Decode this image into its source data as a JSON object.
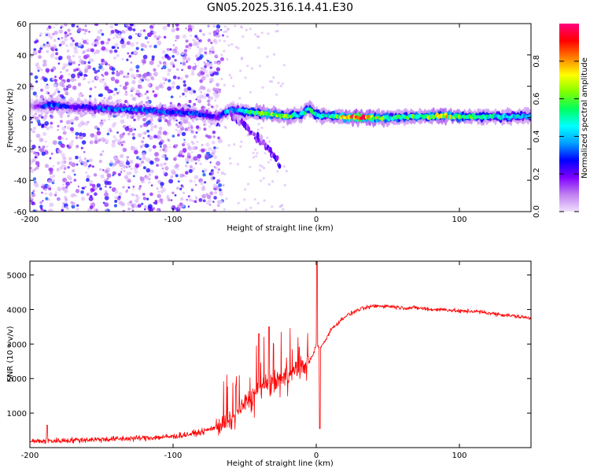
{
  "title": "GN05.2025.316.14.41.E30",
  "chart_data": [
    {
      "type": "heatmap",
      "title": "GN05.2025.316.14.41.E30",
      "xlabel": "Height of straight line (km)",
      "ylabel": "Frequency (Hz)",
      "xlim": [
        -200,
        150
      ],
      "ylim": [
        -60,
        60
      ],
      "xticks": [
        -200,
        -100,
        0,
        100
      ],
      "yticks": [
        -60,
        -40,
        -20,
        0,
        20,
        40,
        60
      ],
      "colorbar": {
        "label": "Normalized spectral amplitude",
        "range": [
          0,
          1
        ],
        "ticks": [
          0,
          0.2,
          0.4,
          0.6,
          0.8
        ],
        "tick_labels": [
          "0.0",
          "0.2",
          "0.4",
          "0.6",
          "0.8"
        ],
        "colors": [
          "#f0e0ff",
          "#c080f0",
          "#8000ff",
          "#0000ff",
          "#00a0ff",
          "#00ffff",
          "#00ff60",
          "#80ff00",
          "#ffff00",
          "#ff8000",
          "#ff0000",
          "#ff0080"
        ]
      },
      "ridge": {
        "x": [
          -200,
          -185,
          -170,
          -150,
          -130,
          -110,
          -90,
          -80,
          -70,
          -60,
          -50,
          -40,
          -30,
          -20,
          -10,
          -5,
          0,
          10,
          30,
          50,
          70,
          90,
          110,
          130,
          150
        ],
        "freq": [
          7,
          8,
          7,
          6,
          5,
          4,
          3,
          2,
          0,
          5,
          4,
          3,
          2,
          1,
          2,
          6,
          2,
          1,
          0,
          0,
          0.5,
          1,
          0.5,
          0.5,
          1
        ],
        "amplitude": [
          0.05,
          0.35,
          0.2,
          0.3,
          0.35,
          0.3,
          0.3,
          0.3,
          0.2,
          0.4,
          0.45,
          0.55,
          0.65,
          0.6,
          0.45,
          0.6,
          0.45,
          0.5,
          0.95,
          0.5,
          0.55,
          0.7,
          0.5,
          0.45,
          0.45
        ]
      },
      "branch": {
        "x": [
          -60,
          -50,
          -45,
          -40,
          -35,
          -30,
          -25
        ],
        "freq": [
          2,
          -5,
          -10,
          -14,
          -18,
          -24,
          -30
        ]
      },
      "scatter_region": {
        "x_from": -200,
        "x_to": -65,
        "freq_from": -60,
        "freq_to": 60
      }
    },
    {
      "type": "line",
      "xlabel": "Height of straight line (km)",
      "ylabel": "SNR (10 * v/v)",
      "xlim": [
        -200,
        150
      ],
      "ylim": [
        0,
        5400
      ],
      "xticks": [
        -200,
        -100,
        0,
        100
      ],
      "yticks": [
        1000,
        2000,
        3000,
        4000,
        5000
      ],
      "color": "#ff0000",
      "series": [
        {
          "name": "SNR",
          "x": [
            -200,
            -180,
            -160,
            -140,
            -120,
            -100,
            -90,
            -80,
            -70,
            -60,
            -55,
            -50,
            -45,
            -40,
            -35,
            -30,
            -25,
            -20,
            -15,
            -10,
            -5,
            -2,
            0,
            2,
            5,
            10,
            15,
            20,
            25,
            30,
            40,
            50,
            60,
            70,
            80,
            90,
            100,
            110,
            120,
            130,
            140,
            150
          ],
          "values": [
            180,
            200,
            230,
            250,
            280,
            320,
            380,
            450,
            600,
            750,
            1000,
            1300,
            1500,
            1700,
            1800,
            1900,
            2000,
            2100,
            2200,
            2300,
            2500,
            2700,
            3000,
            2900,
            3000,
            3400,
            3600,
            3800,
            3900,
            4000,
            4100,
            4100,
            4050,
            4050,
            4000,
            4000,
            3950,
            3950,
            3900,
            3850,
            3800,
            3750
          ]
        }
      ],
      "spikes": [
        {
          "x": 0.5,
          "value": 5400
        },
        {
          "x": 2.5,
          "value": 550
        },
        {
          "x": -188,
          "value": 650
        },
        {
          "x": -33,
          "value": 3500
        },
        {
          "x": -40,
          "value": 3300
        }
      ],
      "noise_amplitude": [
        {
          "x_from": -200,
          "x_to": -70,
          "amp": 0.5
        },
        {
          "x_from": -70,
          "x_to": -5,
          "amp": 1.6
        },
        {
          "x_from": -5,
          "x_to": 150,
          "amp": 0.35
        }
      ]
    }
  ]
}
